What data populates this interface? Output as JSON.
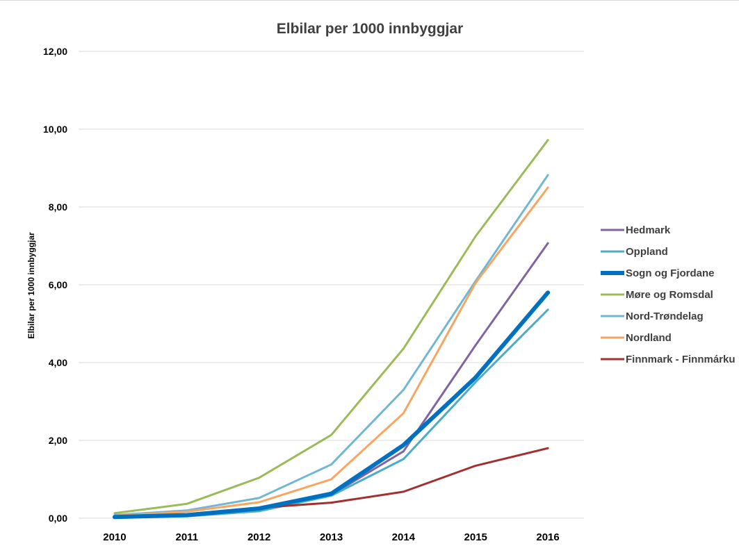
{
  "chart_data": {
    "type": "line",
    "title": "Elbilar per 1000 innbyggjar",
    "xlabel": "",
    "ylabel": "Elbilar  per 1000 innbyggjar",
    "x": [
      "2010",
      "2011",
      "2012",
      "2013",
      "2014",
      "2015",
      "2016"
    ],
    "ylim": [
      0,
      12
    ],
    "yticks": [
      "0,00",
      "2,00",
      "4,00",
      "6,00",
      "8,00",
      "10,00",
      "12,00"
    ],
    "grid": true,
    "legend_position": "right",
    "series": [
      {
        "name": "Hedmark",
        "color": "#8064a2",
        "values": [
          0.03,
          0.08,
          0.22,
          0.6,
          1.72,
          4.45,
          7.07
        ]
      },
      {
        "name": "Oppland",
        "color": "#4bacc6",
        "values": [
          0.02,
          0.05,
          0.18,
          0.58,
          1.52,
          3.5,
          5.36
        ]
      },
      {
        "name": "Sogn og Fjordane",
        "color": "#0070c0",
        "bold": true,
        "values": [
          0.03,
          0.08,
          0.25,
          0.63,
          1.88,
          3.62,
          5.8
        ]
      },
      {
        "name": "Møre og Romsdal",
        "color": "#9bbb59",
        "values": [
          0.13,
          0.37,
          1.04,
          2.14,
          4.36,
          7.25,
          9.72
        ]
      },
      {
        "name": "Nord-Trøndelag",
        "color": "#71b7d4",
        "values": [
          0.08,
          0.2,
          0.52,
          1.38,
          3.3,
          6.1,
          8.82
        ]
      },
      {
        "name": "Nordland",
        "color": "#f9a460",
        "values": [
          0.06,
          0.17,
          0.41,
          1.0,
          2.7,
          6.05,
          8.5
        ]
      },
      {
        "name": "Finnmark - Finnmárku",
        "color": "#a32f2f",
        "values": [
          0.02,
          0.1,
          0.27,
          0.4,
          0.68,
          1.35,
          1.8
        ]
      }
    ]
  }
}
